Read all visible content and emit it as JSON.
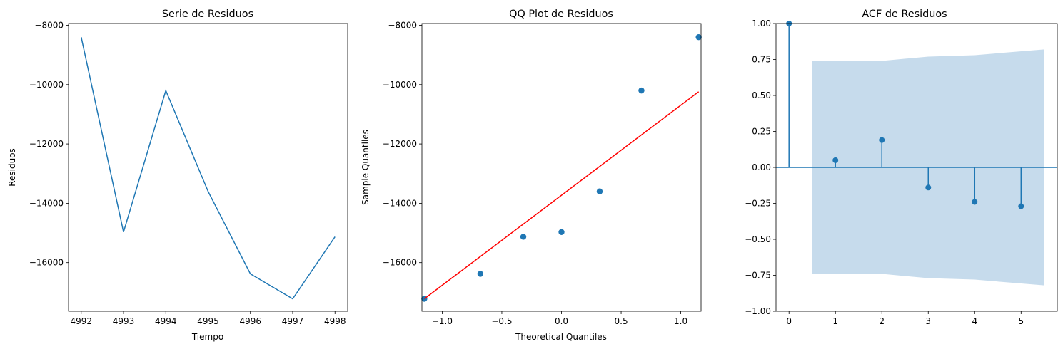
{
  "colors": {
    "series": "#1f77b4",
    "fit_line": "#ff0000",
    "band": "#c6dbec"
  },
  "chart_data": [
    {
      "type": "line",
      "title": "Serie de Residuos",
      "xlabel": "Tiempo",
      "ylabel": "Residuos",
      "x": [
        4992,
        4993,
        4994,
        4995,
        4996,
        4997,
        4998
      ],
      "y": [
        -8400,
        -14970,
        -10200,
        -13600,
        -16380,
        -17220,
        -15130
      ],
      "xlim": [
        4991.7,
        4998.3
      ],
      "ylim": [
        -17640,
        -7940
      ],
      "xticks": [
        4992,
        4993,
        4994,
        4995,
        4996,
        4997,
        4998
      ],
      "xtick_labels": [
        "4992",
        "4993",
        "4994",
        "4995",
        "4996",
        "4997",
        "4998"
      ],
      "yticks": [
        -16000,
        -14000,
        -12000,
        -10000,
        -8000
      ],
      "ytick_labels": [
        "−16000",
        "−14000",
        "−12000",
        "−10000",
        "−8000"
      ]
    },
    {
      "type": "scatter",
      "title": "QQ Plot de Residuos",
      "xlabel": "Theoretical Quantiles",
      "ylabel": "Sample Quantiles",
      "x": [
        -1.15,
        -0.68,
        -0.32,
        0.0,
        0.32,
        0.67,
        1.15
      ],
      "y": [
        -17220,
        -16380,
        -15130,
        -14970,
        -13600,
        -10200,
        -8400
      ],
      "fit_line": {
        "x": [
          -1.15,
          1.15
        ],
        "y": [
          -17220,
          -10240
        ]
      },
      "xlim": [
        -1.17,
        1.17
      ],
      "ylim": [
        -17640,
        -7940
      ],
      "xticks": [
        -1.0,
        -0.5,
        0.0,
        0.5,
        1.0
      ],
      "xtick_labels": [
        "−1.0",
        "−0.5",
        "0.0",
        "0.5",
        "1.0"
      ],
      "yticks": [
        -16000,
        -14000,
        -12000,
        -10000,
        -8000
      ],
      "ytick_labels": [
        "−16000",
        "−14000",
        "−12000",
        "−10000",
        "−8000"
      ]
    },
    {
      "type": "stem",
      "title": "ACF de Residuos",
      "xlabel": "",
      "ylabel": "",
      "lags": [
        0,
        1,
        2,
        3,
        4,
        5
      ],
      "values": [
        1.0,
        0.05,
        0.19,
        -0.14,
        -0.24,
        -0.27
      ],
      "confidence_band": {
        "x": [
          0.5,
          2.0,
          3.0,
          4.0,
          5.5
        ],
        "upper": [
          0.74,
          0.74,
          0.77,
          0.78,
          0.82
        ],
        "lower": [
          -0.74,
          -0.74,
          -0.77,
          -0.78,
          -0.82
        ]
      },
      "xlim": [
        -0.28,
        5.78
      ],
      "ylim": [
        -1.0,
        1.0
      ],
      "xticks": [
        0,
        1,
        2,
        3,
        4,
        5
      ],
      "xtick_labels": [
        "0",
        "1",
        "2",
        "3",
        "4",
        "5"
      ],
      "yticks": [
        -1.0,
        -0.75,
        -0.5,
        -0.25,
        0.0,
        0.25,
        0.5,
        0.75,
        1.0
      ],
      "ytick_labels": [
        "−1.00",
        "−0.75",
        "−0.50",
        "−0.25",
        "0.00",
        "0.25",
        "0.50",
        "0.75",
        "1.00"
      ]
    }
  ]
}
